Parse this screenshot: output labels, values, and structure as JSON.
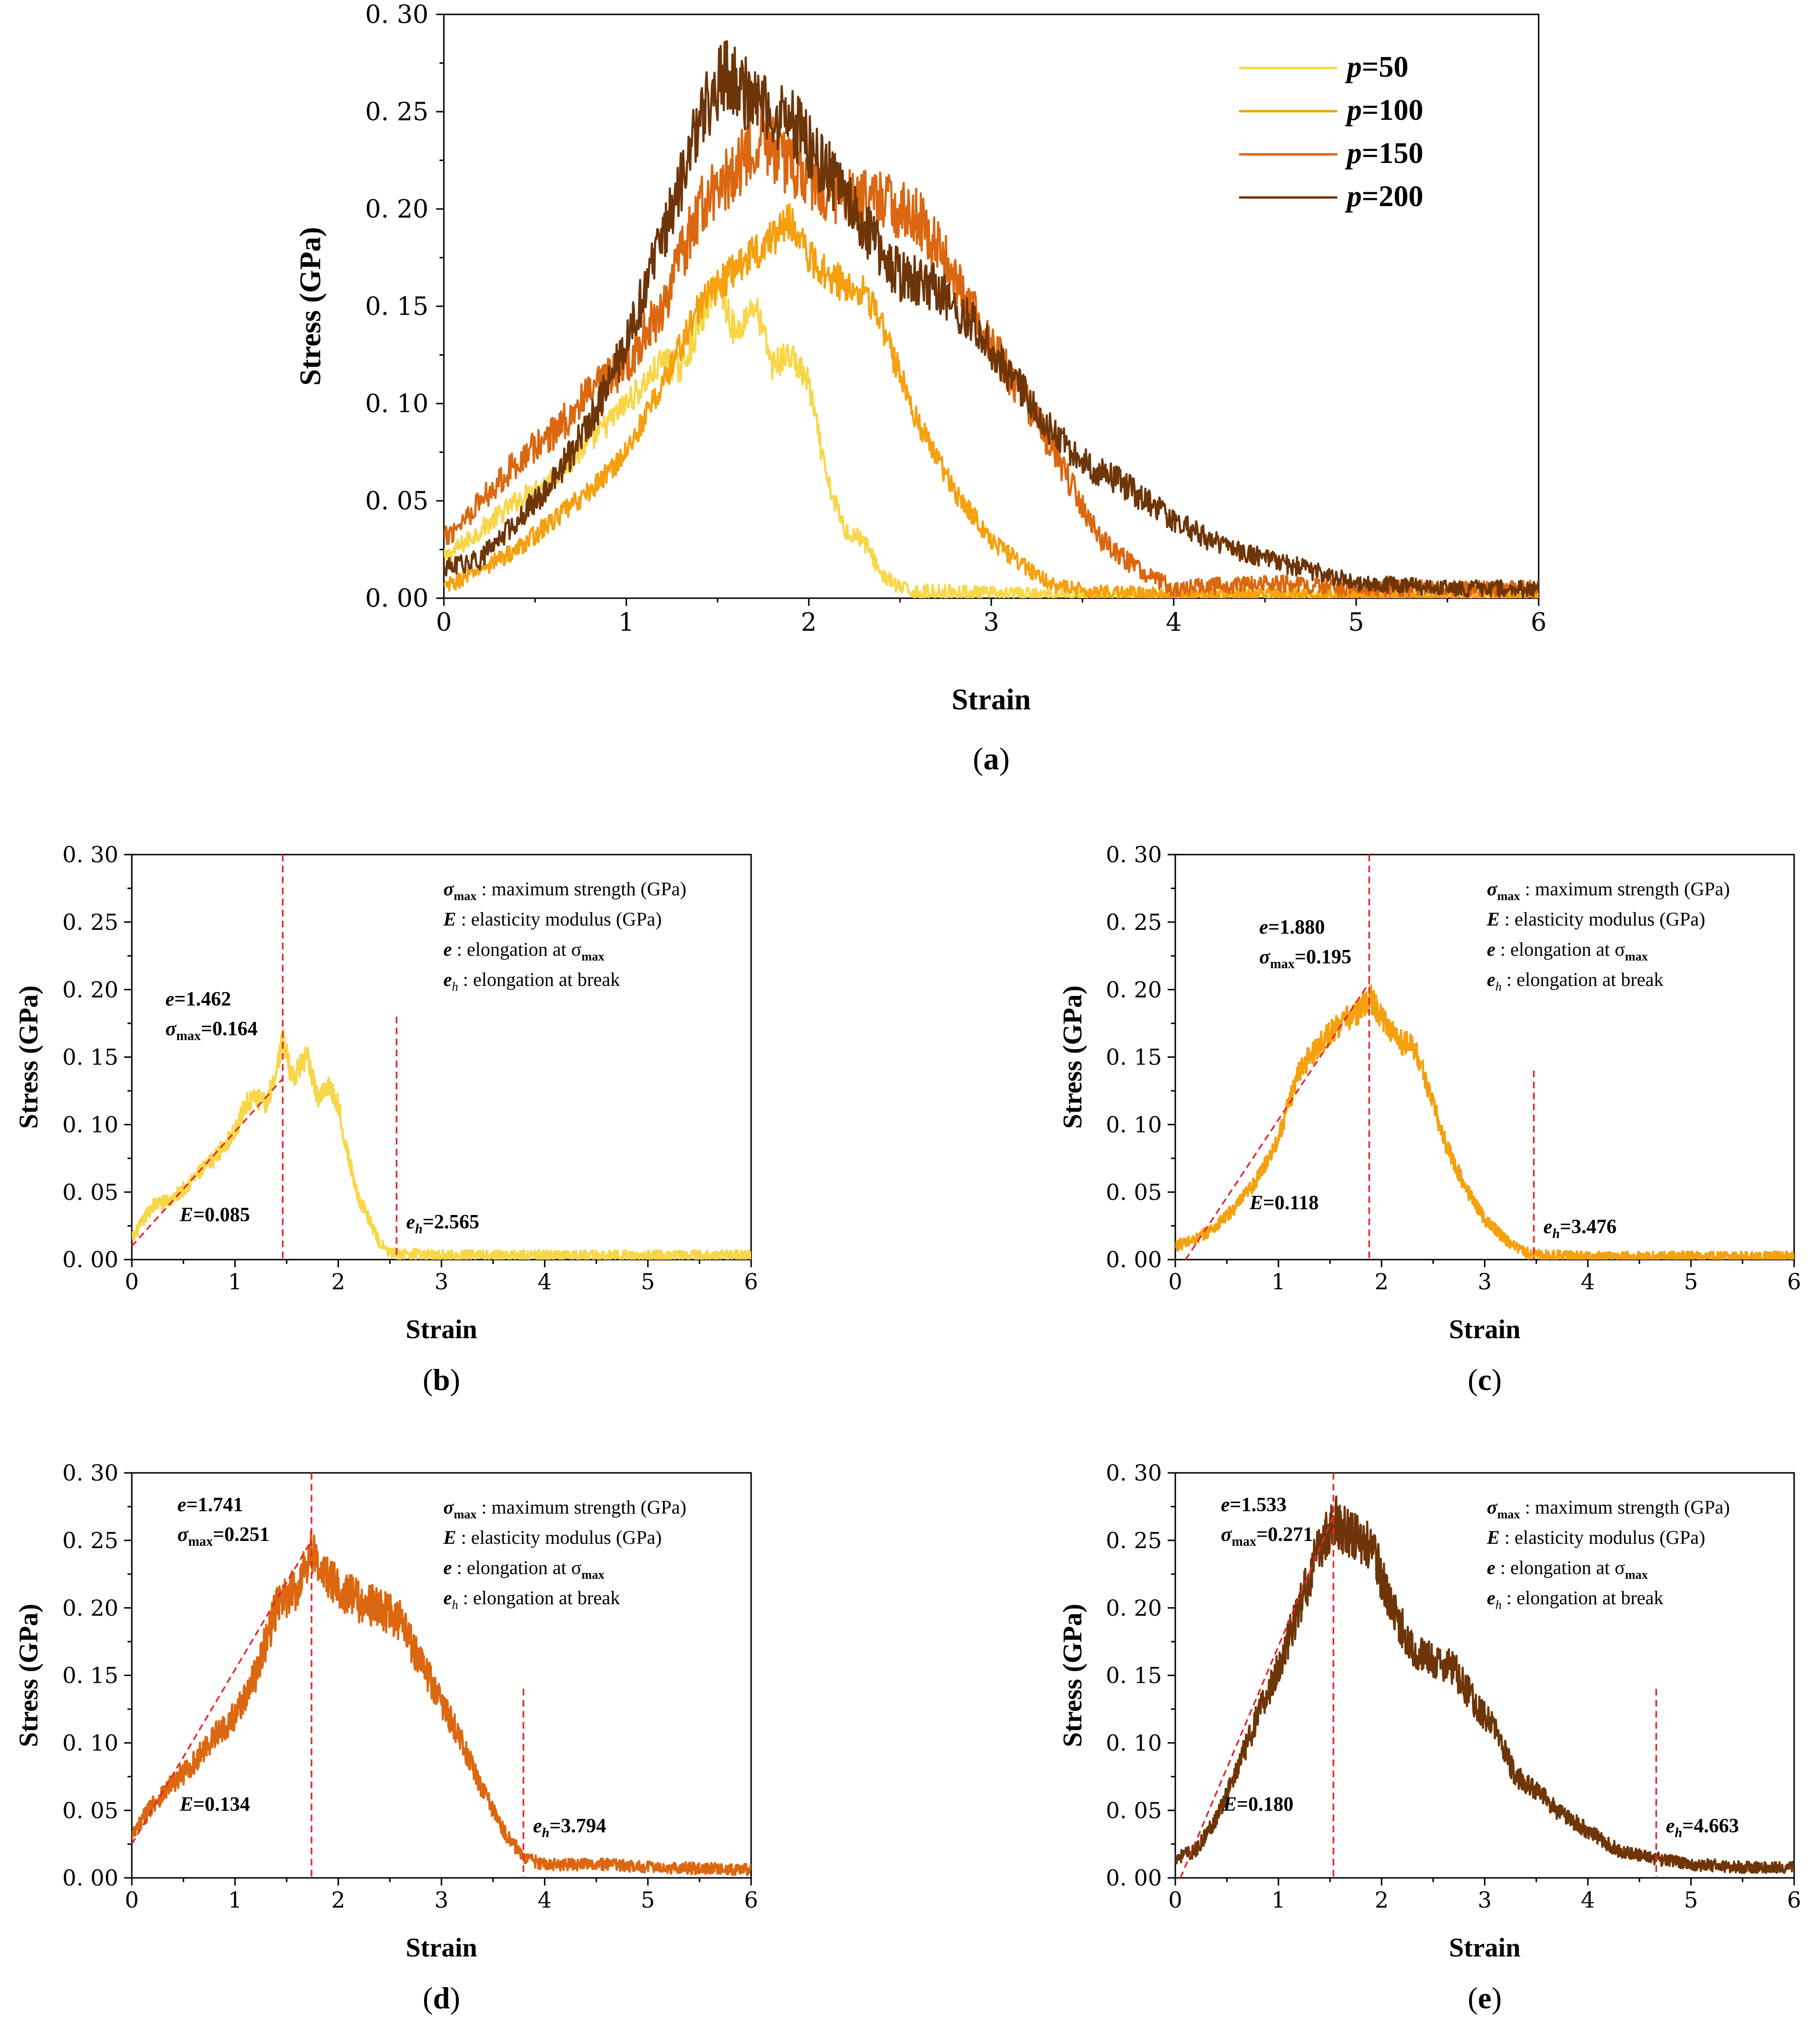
{
  "chart_data": [
    {
      "id": "a",
      "type": "line",
      "caption_letter": "a",
      "xlabel": "Strain",
      "ylabel": "Stress (GPa)",
      "xlim": [
        0,
        6
      ],
      "ylim": [
        0,
        0.3
      ],
      "xticks": [
        "0",
        "1",
        "2",
        "3",
        "4",
        "5",
        "6"
      ],
      "yticks": [
        "0. 00",
        "0. 05",
        "0. 10",
        "0. 15",
        "0. 20",
        "0. 25",
        "0. 30"
      ],
      "legend": {
        "position": "top-right"
      },
      "series": [
        {
          "name": "p=50",
          "legend_p": "p",
          "legend_rest": "=50",
          "color": "#F7D748",
          "x": [
            0,
            0.2,
            0.4,
            0.6,
            0.8,
            1.0,
            1.1,
            1.2,
            1.3,
            1.4,
            1.5,
            1.6,
            1.7,
            1.8,
            1.9,
            2.0,
            2.1,
            2.2,
            2.3,
            2.4,
            2.5,
            2.6,
            2.8,
            3.0,
            3.5,
            4.0,
            5.0,
            6.0
          ],
          "y": [
            0.02,
            0.035,
            0.05,
            0.062,
            0.08,
            0.1,
            0.11,
            0.122,
            0.118,
            0.14,
            0.163,
            0.135,
            0.152,
            0.12,
            0.125,
            0.11,
            0.06,
            0.035,
            0.03,
            0.012,
            0.005,
            0.003,
            0.003,
            0.002,
            0.001,
            0.001,
            0.001,
            0.001
          ]
        },
        {
          "name": "p=100",
          "legend_p": "p",
          "legend_rest": "=100",
          "color": "#F5A00E",
          "x": [
            0,
            0.2,
            0.4,
            0.6,
            0.8,
            1.0,
            1.2,
            1.4,
            1.6,
            1.8,
            1.9,
            2.0,
            2.2,
            2.3,
            2.4,
            2.6,
            2.8,
            3.0,
            3.2,
            3.4,
            3.6,
            4.0,
            5.0,
            6.0
          ],
          "y": [
            0.005,
            0.015,
            0.025,
            0.04,
            0.055,
            0.075,
            0.11,
            0.15,
            0.17,
            0.185,
            0.195,
            0.175,
            0.16,
            0.16,
            0.14,
            0.09,
            0.055,
            0.03,
            0.015,
            0.005,
            0.003,
            0.001,
            0.001,
            0.001
          ]
        },
        {
          "name": "p=150",
          "legend_p": "p",
          "legend_rest": "=150",
          "color": "#DB6710",
          "x": [
            0,
            0.2,
            0.4,
            0.6,
            0.8,
            1.0,
            1.2,
            1.4,
            1.6,
            1.74,
            1.8,
            2.0,
            2.2,
            2.4,
            2.6,
            2.8,
            3.0,
            3.2,
            3.4,
            3.6,
            3.8,
            4.0,
            4.5,
            5.0,
            6.0
          ],
          "y": [
            0.03,
            0.05,
            0.07,
            0.085,
            0.105,
            0.12,
            0.15,
            0.2,
            0.22,
            0.24,
            0.23,
            0.215,
            0.205,
            0.205,
            0.195,
            0.165,
            0.13,
            0.1,
            0.065,
            0.03,
            0.015,
            0.005,
            0.008,
            0.005,
            0.005
          ]
        },
        {
          "name": "p=200",
          "legend_p": "p",
          "legend_rest": "=200",
          "color": "#6E3508",
          "x": [
            0,
            0.2,
            0.4,
            0.6,
            0.8,
            1.0,
            1.2,
            1.4,
            1.53,
            1.7,
            1.9,
            2.1,
            2.3,
            2.5,
            2.7,
            2.9,
            3.1,
            3.3,
            3.5,
            3.7,
            4.0,
            4.3,
            4.6,
            5.0,
            5.5,
            6.0
          ],
          "y": [
            0.015,
            0.02,
            0.04,
            0.06,
            0.09,
            0.13,
            0.185,
            0.245,
            0.27,
            0.255,
            0.245,
            0.22,
            0.19,
            0.165,
            0.16,
            0.14,
            0.115,
            0.09,
            0.07,
            0.06,
            0.04,
            0.025,
            0.018,
            0.008,
            0.005,
            0.005
          ]
        }
      ]
    },
    {
      "id": "b",
      "type": "line",
      "caption_letter": "b",
      "xlabel": "Strain",
      "ylabel": "Stress (GPa)",
      "xlim": [
        0,
        6
      ],
      "ylim": [
        0,
        0.3
      ],
      "xticks": [
        "0",
        "1",
        "2",
        "3",
        "4",
        "5",
        "6"
      ],
      "yticks": [
        "0. 00",
        "0. 05",
        "0. 10",
        "0. 15",
        "0. 20",
        "0. 25",
        "0. 30"
      ],
      "series": [
        {
          "name": "p=50",
          "color": "#F7D748",
          "x": [
            0,
            0.2,
            0.4,
            0.6,
            0.8,
            1.0,
            1.1,
            1.2,
            1.3,
            1.4,
            1.462,
            1.55,
            1.7,
            1.8,
            1.9,
            2.0,
            2.1,
            2.2,
            2.3,
            2.4,
            2.5,
            2.6,
            2.8,
            3.0,
            3.5,
            4.0,
            5.0,
            6.0
          ],
          "y": [
            0.015,
            0.04,
            0.045,
            0.06,
            0.075,
            0.095,
            0.115,
            0.12,
            0.115,
            0.14,
            0.164,
            0.135,
            0.15,
            0.12,
            0.13,
            0.115,
            0.075,
            0.045,
            0.03,
            0.012,
            0.005,
            0.004,
            0.004,
            0.003,
            0.003,
            0.003,
            0.003,
            0.003
          ]
        }
      ],
      "elastic_line": {
        "x": [
          0.0,
          1.462
        ],
        "y": [
          0.01,
          0.134
        ]
      },
      "vline_e": {
        "x": 1.462,
        "y_top": 0.3
      },
      "vline_eh": {
        "x": 2.565,
        "y_top": 0.18
      },
      "legend_lines": [
        {
          "sym": "σ",
          "sub": "max",
          "rest": " : maximum strength (GPa)"
        },
        {
          "sym": "E",
          "sub": "",
          "rest": " : elasticity modulus (GPa)"
        },
        {
          "sym": "e",
          "sub": "",
          "rest": " : elongation at σ",
          "tail_sub": "max"
        },
        {
          "sym": "e",
          "sub": "h",
          "rest": " : elongation at break"
        }
      ],
      "e_label": "e",
      "e_value": "=1.462",
      "smax_sym": "σ",
      "smax_sub": "max",
      "smax_value": "=0.164",
      "E_label": "E",
      "E_value": "=0.085",
      "eh_label": "e",
      "eh_sub": "h",
      "eh_value": "=2.565"
    },
    {
      "id": "c",
      "type": "line",
      "caption_letter": "c",
      "xlabel": "Strain",
      "ylabel": "Stress (GPa)",
      "xlim": [
        0,
        6
      ],
      "ylim": [
        0,
        0.3
      ],
      "xticks": [
        "0",
        "1",
        "2",
        "3",
        "4",
        "5",
        "6"
      ],
      "yticks": [
        "0. 00",
        "0. 05",
        "0. 10",
        "0. 15",
        "0. 20",
        "0. 25",
        "0. 30"
      ],
      "series": [
        {
          "name": "p=100",
          "color": "#F5A00E",
          "x": [
            0,
            0.2,
            0.4,
            0.6,
            0.8,
            1.0,
            1.2,
            1.4,
            1.6,
            1.8,
            1.88,
            2.0,
            2.2,
            2.3,
            2.4,
            2.6,
            2.8,
            3.0,
            3.2,
            3.4,
            3.6,
            4.0,
            5.0,
            6.0
          ],
          "y": [
            0.01,
            0.015,
            0.025,
            0.04,
            0.06,
            0.09,
            0.14,
            0.16,
            0.175,
            0.185,
            0.195,
            0.18,
            0.16,
            0.16,
            0.14,
            0.09,
            0.055,
            0.03,
            0.015,
            0.005,
            0.003,
            0.002,
            0.002,
            0.002
          ]
        }
      ],
      "elastic_line": {
        "x": [
          0.1,
          1.88
        ],
        "y": [
          0.0,
          0.205
        ]
      },
      "vline_e": {
        "x": 1.88,
        "y_top": 0.3
      },
      "vline_eh": {
        "x": 3.476,
        "y_top": 0.14
      },
      "legend_lines": [
        {
          "sym": "σ",
          "sub": "max",
          "rest": " : maximum strength (GPa)"
        },
        {
          "sym": "E",
          "sub": "",
          "rest": " : elasticity modulus (GPa)"
        },
        {
          "sym": "e",
          "sub": "",
          "rest": " : elongation at σ",
          "tail_sub": "max"
        },
        {
          "sym": "e",
          "sub": "h",
          "rest": " : elongation at break"
        }
      ],
      "e_label": "e",
      "e_value": "=1.880",
      "smax_sym": "σ",
      "smax_sub": "max",
      "smax_value": "=0.195",
      "E_label": "E",
      "E_value": "=0.118",
      "eh_label": "e",
      "eh_sub": "h",
      "eh_value": "=3.476"
    },
    {
      "id": "d",
      "type": "line",
      "caption_letter": "d",
      "xlabel": "Strain",
      "ylabel": "Stress (GPa)",
      "xlim": [
        0,
        6
      ],
      "ylim": [
        0,
        0.3
      ],
      "xticks": [
        "0",
        "1",
        "2",
        "3",
        "4",
        "5",
        "6"
      ],
      "yticks": [
        "0. 00",
        "0. 05",
        "0. 10",
        "0. 15",
        "0. 20",
        "0. 25",
        "0. 30"
      ],
      "series": [
        {
          "name": "p=150",
          "color": "#DB6710",
          "x": [
            0,
            0.2,
            0.4,
            0.6,
            0.8,
            1.0,
            1.2,
            1.4,
            1.6,
            1.741,
            1.8,
            2.0,
            2.2,
            2.4,
            2.6,
            2.8,
            3.0,
            3.2,
            3.4,
            3.6,
            3.8,
            4.0,
            4.5,
            5.0,
            6.0
          ],
          "y": [
            0.03,
            0.055,
            0.07,
            0.085,
            0.105,
            0.12,
            0.15,
            0.2,
            0.215,
            0.245,
            0.23,
            0.215,
            0.205,
            0.2,
            0.19,
            0.16,
            0.13,
            0.1,
            0.065,
            0.035,
            0.015,
            0.01,
            0.01,
            0.008,
            0.006
          ]
        }
      ],
      "elastic_line": {
        "x": [
          0.0,
          1.741
        ],
        "y": [
          0.025,
          0.25
        ]
      },
      "vline_e": {
        "x": 1.741,
        "y_top": 0.3
      },
      "vline_eh": {
        "x": 3.794,
        "y_top": 0.14
      },
      "legend_lines": [
        {
          "sym": "σ",
          "sub": "max",
          "rest": " : maximum strength (GPa)"
        },
        {
          "sym": "E",
          "sub": "",
          "rest": " : elasticity modulus (GPa)"
        },
        {
          "sym": "e",
          "sub": "",
          "rest": " : elongation at σ",
          "tail_sub": "max"
        },
        {
          "sym": "e",
          "sub": "h",
          "rest": " : elongation at break"
        }
      ],
      "e_label": "e",
      "e_value": "=1.741",
      "smax_sym": "σ",
      "smax_sub": "max",
      "smax_value": "=0.251",
      "E_label": "E",
      "E_value": "=0.134",
      "eh_label": "e",
      "eh_sub": "h",
      "eh_value": "=3.794"
    },
    {
      "id": "e",
      "type": "line",
      "caption_letter": "e",
      "xlabel": "Strain",
      "ylabel": "Stress (GPa)",
      "xlim": [
        0,
        6
      ],
      "ylim": [
        0,
        0.3
      ],
      "xticks": [
        "0",
        "1",
        "2",
        "3",
        "4",
        "5",
        "6"
      ],
      "yticks": [
        "0. 00",
        "0. 05",
        "0. 10",
        "0. 15",
        "0. 20",
        "0. 25",
        "0. 30"
      ],
      "series": [
        {
          "name": "p=200",
          "color": "#6E3508",
          "x": [
            0,
            0.2,
            0.4,
            0.6,
            0.8,
            1.0,
            1.2,
            1.4,
            1.533,
            1.7,
            1.9,
            2.1,
            2.3,
            2.5,
            2.7,
            2.9,
            3.1,
            3.3,
            3.5,
            3.7,
            4.0,
            4.3,
            4.6,
            5.0,
            5.5,
            6.0
          ],
          "y": [
            0.015,
            0.02,
            0.045,
            0.08,
            0.12,
            0.155,
            0.2,
            0.245,
            0.265,
            0.255,
            0.245,
            0.2,
            0.17,
            0.16,
            0.155,
            0.13,
            0.11,
            0.075,
            0.065,
            0.05,
            0.035,
            0.02,
            0.015,
            0.01,
            0.008,
            0.008
          ]
        }
      ],
      "elastic_line": {
        "x": [
          0.05,
          1.533
        ],
        "y": [
          0.0,
          0.268
        ]
      },
      "vline_e": {
        "x": 1.533,
        "y_top": 0.3
      },
      "vline_eh": {
        "x": 4.663,
        "y_top": 0.14
      },
      "legend_lines": [
        {
          "sym": "σ",
          "sub": "max",
          "rest": " : maximum strength (GPa)"
        },
        {
          "sym": "E",
          "sub": "",
          "rest": " : elasticity modulus (GPa)"
        },
        {
          "sym": "e",
          "sub": "",
          "rest": " : elongation at σ",
          "tail_sub": "max"
        },
        {
          "sym": "e",
          "sub": "h",
          "rest": " : elongation at break"
        }
      ],
      "e_label": "e",
      "e_value": "=1.533",
      "smax_sym": "σ",
      "smax_sub": "max",
      "smax_value": "=0.271",
      "E_label": "E",
      "E_value": "=0.180",
      "eh_label": "e",
      "eh_sub": "h",
      "eh_value": "=4.663"
    }
  ]
}
